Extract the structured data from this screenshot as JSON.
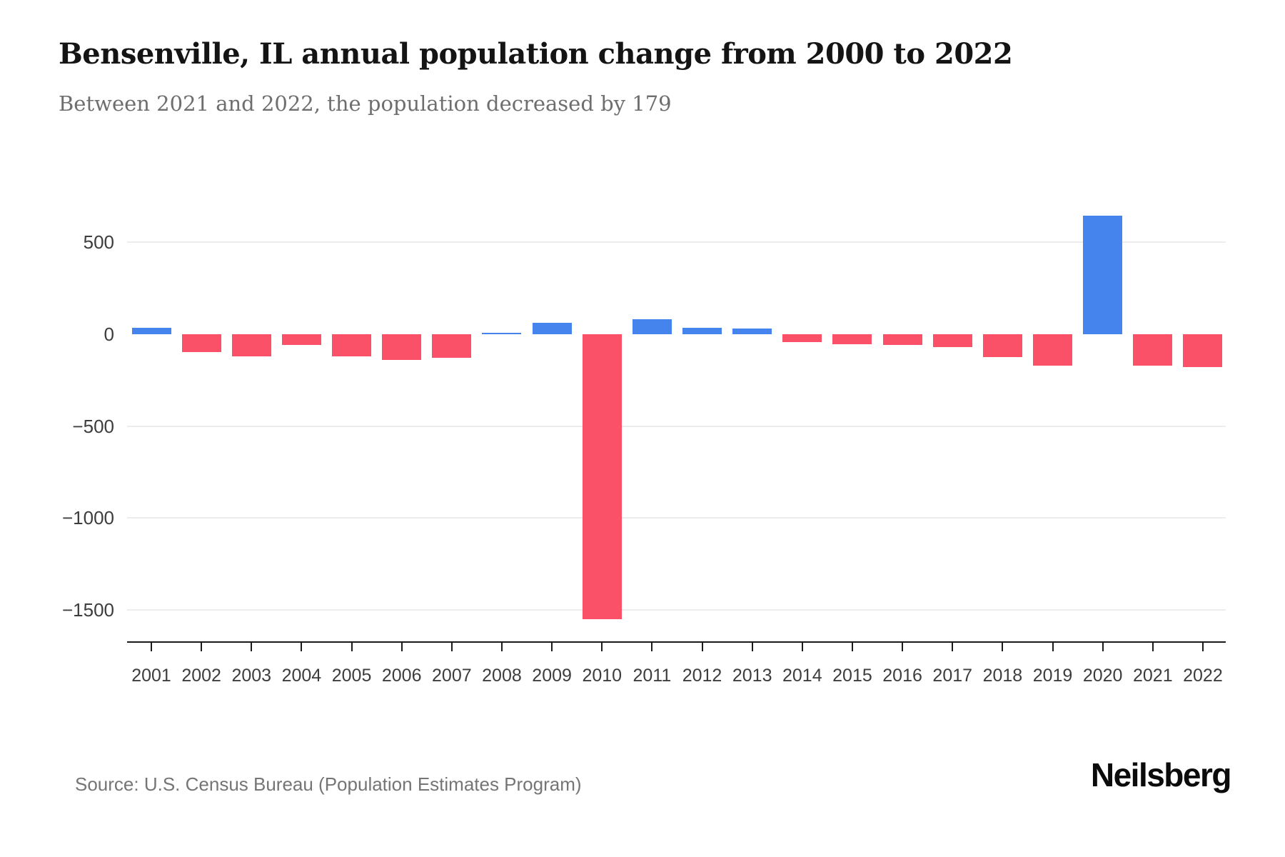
{
  "page": {
    "title": "Bensenville, IL annual population change from 2000 to 2022",
    "subtitle": "Between 2021 and 2022, the population decreased by 179",
    "source": "Source: U.S. Census Bureau (Population Estimates Program)",
    "brand": "Neilsberg"
  },
  "chart_data": {
    "type": "bar",
    "title": "Bensenville, IL annual population change from 2000 to 2022",
    "subtitle": "Between 2021 and 2022, the population decreased by 179",
    "xlabel": "",
    "ylabel": "",
    "categories": [
      "2001",
      "2002",
      "2003",
      "2004",
      "2005",
      "2006",
      "2007",
      "2008",
      "2009",
      "2010",
      "2011",
      "2012",
      "2013",
      "2014",
      "2015",
      "2016",
      "2017",
      "2018",
      "2019",
      "2020",
      "2021",
      "2022"
    ],
    "values": [
      35,
      -100,
      -120,
      -60,
      -120,
      -140,
      -130,
      8,
      60,
      -1550,
      80,
      35,
      30,
      -45,
      -55,
      -60,
      -70,
      -125,
      -170,
      645,
      -170,
      -179
    ],
    "ylim": [
      -1670,
      845
    ],
    "y_ticks": [
      {
        "label": "500",
        "value": 500,
        "grid": true
      },
      {
        "label": "0",
        "value": 0,
        "grid": false
      },
      {
        "label": "−500",
        "value": -500,
        "grid": true
      },
      {
        "label": "−1000",
        "value": -1000,
        "grid": true
      },
      {
        "label": "−1500",
        "value": -1500,
        "grid": true
      }
    ],
    "grid": "horizontal",
    "legend": "none",
    "colors": {
      "positive": "#4584ec",
      "negative": "#fb5168"
    }
  }
}
